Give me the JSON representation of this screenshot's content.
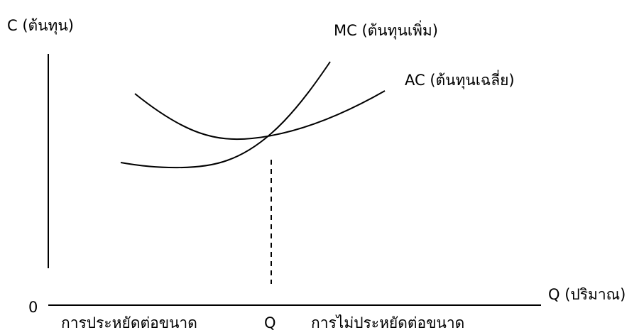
{
  "diagram": {
    "y_axis_label": "C (ต้นทุน)",
    "x_axis_label": "Q (ปริมาณ)",
    "origin_label": "0",
    "quantity_marker_label": "Q",
    "economies_label": "การประหยัดต่อขนาด",
    "diseconomies_label": "การไม่ประหยัดต่อขนาด",
    "curves": [
      {
        "id": "mc",
        "label": "MC (ต้นทุนเพิ่ม)"
      },
      {
        "id": "ac",
        "label": "AC (ต้นทุนเฉลี่ย)"
      }
    ],
    "line_color": "#000000",
    "background": "#ffffff"
  }
}
